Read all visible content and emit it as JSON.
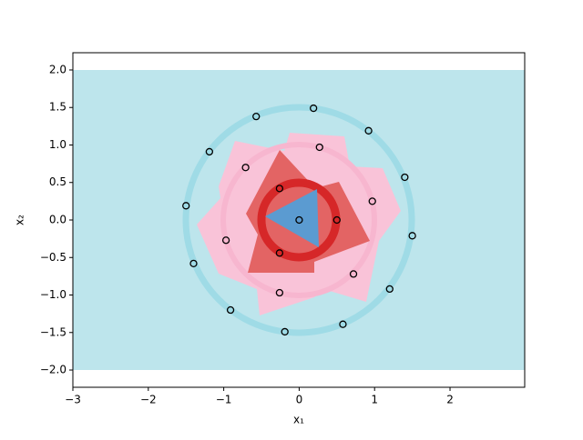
{
  "chart_data": {
    "type": "scatter",
    "xlabel": "x₁",
    "ylabel": "x₂",
    "x": [
      0.19,
      -0.57,
      0.92,
      0.27,
      -1.19,
      -0.71,
      1.4,
      -0.26,
      0.97,
      -1.5,
      0.0,
      0.5,
      1.5,
      -0.97,
      -0.26,
      -1.4,
      0.72,
      -0.26,
      1.2,
      -0.91,
      0.58,
      -0.19
    ],
    "y": [
      1.49,
      1.38,
      1.19,
      0.97,
      0.91,
      0.7,
      0.57,
      0.42,
      0.25,
      0.19,
      0.0,
      0.0,
      -0.21,
      -0.27,
      -0.44,
      -0.58,
      -0.72,
      -0.97,
      -0.92,
      -1.2,
      -1.39,
      -1.49
    ],
    "color": "#000000",
    "xlim": [
      -3,
      2.99
    ],
    "ylim": [
      -2.23,
      2.23
    ],
    "xticks": [
      {
        "value": -3,
        "label": "−3"
      },
      {
        "value": -2,
        "label": "−2"
      },
      {
        "value": -1,
        "label": "−1"
      },
      0,
      1,
      2
    ],
    "yticks": [
      {
        "value": 2,
        "label": "2.0"
      },
      {
        "value": 1.5,
        "label": "1.5"
      },
      {
        "value": 1,
        "label": "1.0"
      },
      {
        "value": 0.5,
        "label": "0.5"
      },
      {
        "value": 0,
        "label": "0.0"
      },
      {
        "value": -0.5,
        "label": "−0.5"
      },
      {
        "value": -1,
        "label": "−1.0"
      },
      {
        "value": -1.5,
        "label": "−1.5"
      },
      {
        "value": -2,
        "label": "−2.0"
      }
    ]
  }
}
